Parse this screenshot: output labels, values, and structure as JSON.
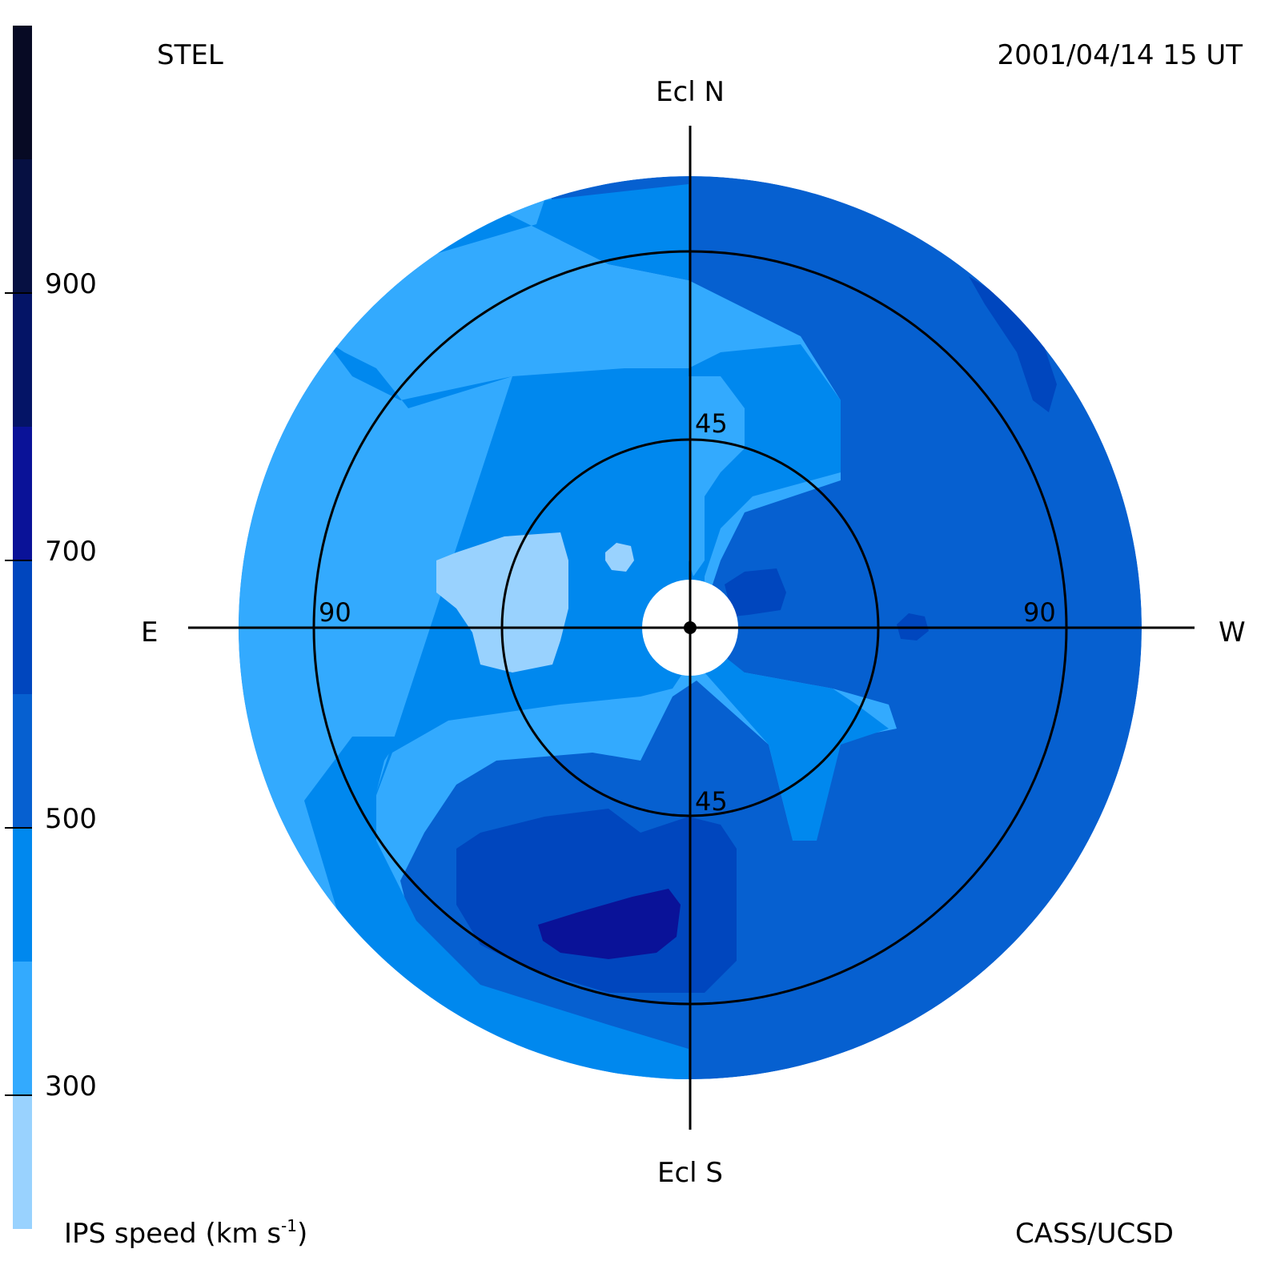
{
  "header": {
    "observatory": "STEL",
    "datetime": "2001/04/14 15 UT"
  },
  "footer": {
    "credit": "CASS/UCSD",
    "colorbar_label_main": "IPS speed (km s",
    "colorbar_label_sup": "-1",
    "colorbar_label_end": ")"
  },
  "directions": {
    "north": "Ecl N",
    "south": "Ecl S",
    "east": "E",
    "west": "W"
  },
  "rings": {
    "inner_label_top": "45",
    "inner_label_bottom": "45",
    "outer_label_east": "90",
    "outer_label_west": "90"
  },
  "colorbar": {
    "ticks": [
      "900",
      "700",
      "500",
      "300"
    ],
    "tick_values": [
      900,
      700,
      500,
      300
    ],
    "range": [
      200,
      1100
    ],
    "bands": [
      {
        "from": 200,
        "to": 300,
        "color": "#99d2fe"
      },
      {
        "from": 300,
        "to": 400,
        "color": "#33aafe"
      },
      {
        "from": 400,
        "to": 500,
        "color": "#0088ee"
      },
      {
        "from": 500,
        "to": 600,
        "color": "#0660d0"
      },
      {
        "from": 600,
        "to": 700,
        "color": "#0046be"
      },
      {
        "from": 700,
        "to": 800,
        "color": "#0a1298"
      },
      {
        "from": 800,
        "to": 900,
        "color": "#041466"
      },
      {
        "from": 900,
        "to": 1000,
        "color": "#061042"
      },
      {
        "from": 1000,
        "to": 1100,
        "color": "#070a24"
      }
    ]
  },
  "colors": {
    "v250": "#99d2fe",
    "v350": "#33aafe",
    "v450": "#0088ee",
    "v550": "#0660d0",
    "v650": "#0046be",
    "v750": "#0a1298",
    "occulter": "#ffffff",
    "axes": "#000000"
  }
}
